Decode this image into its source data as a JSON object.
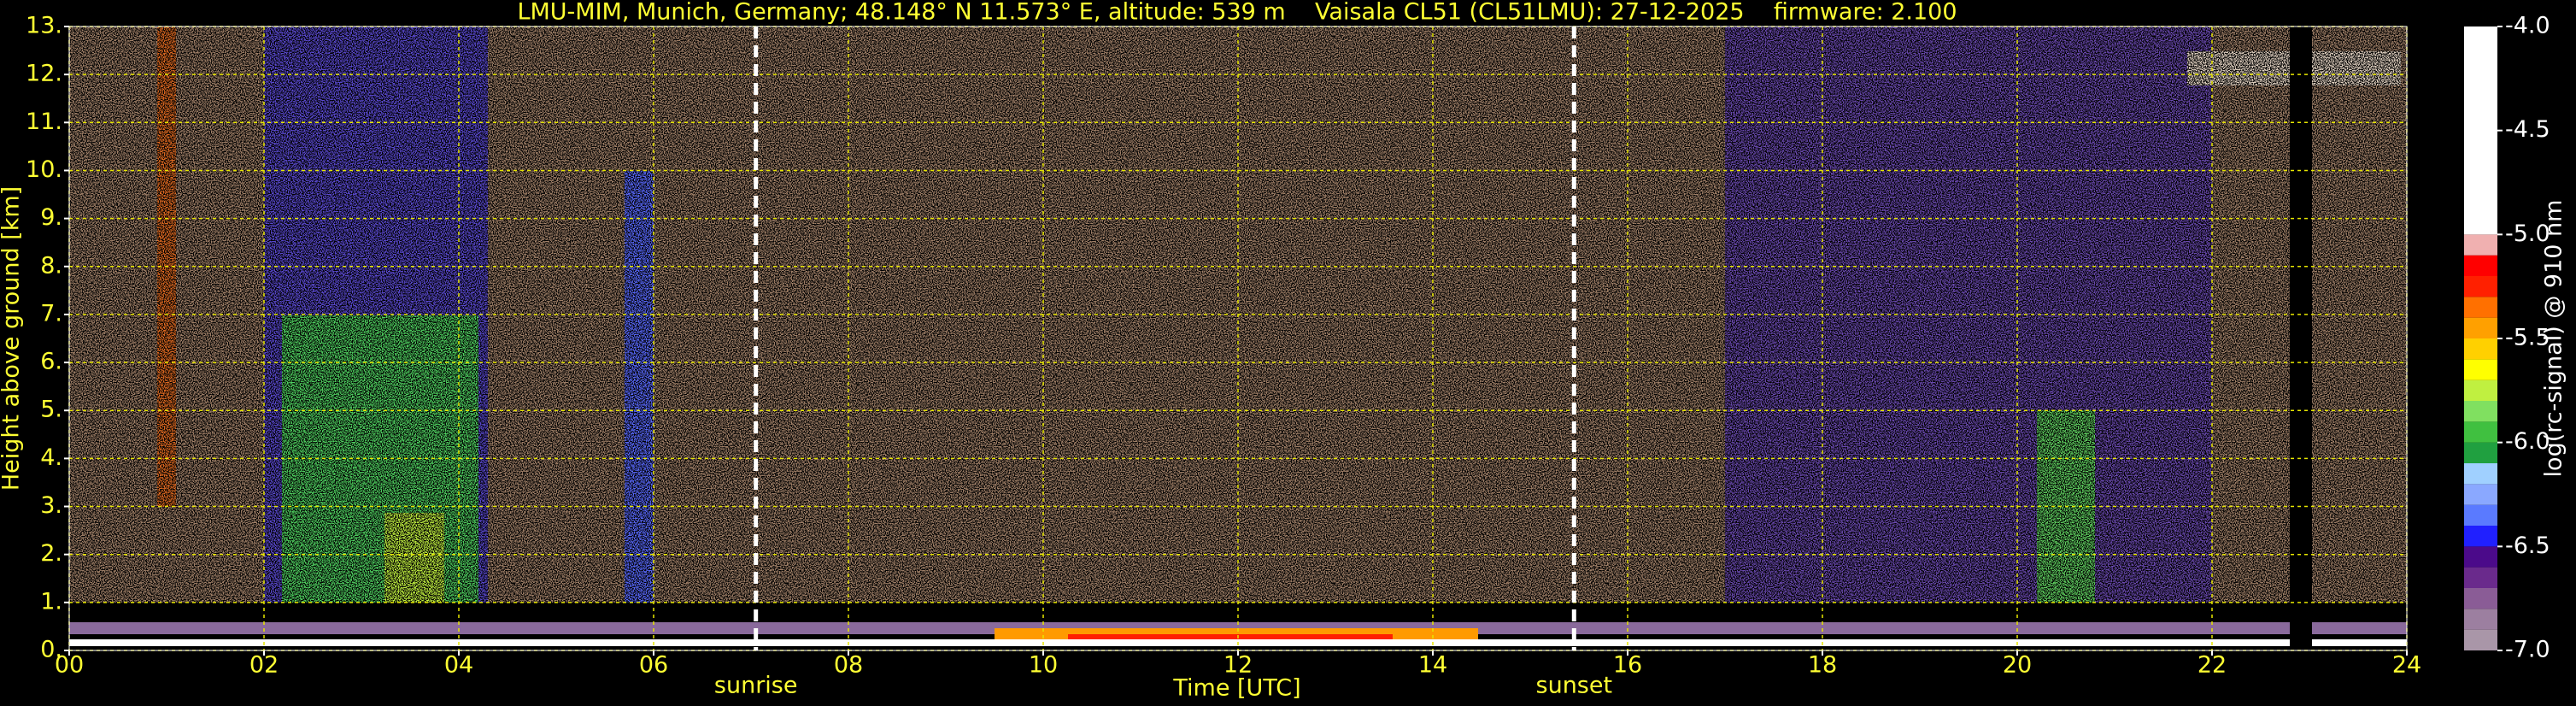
{
  "chart_data": {
    "type": "heatmap",
    "title": "LMU-MIM, Munich, Germany; 48.148° N 11.573° E, altitude: 539 m    Vaisala CL51 (CL51LMU): 27-12-2025    firmware: 2.100",
    "x_label": "Time [UTC]",
    "y_label": "Height above ground [km]",
    "colorbar_label": "log(rc-signal) @ 910 nm",
    "xlim": [
      0,
      24
    ],
    "xticks": [
      {
        "value": 0,
        "label": "00"
      },
      {
        "value": 2,
        "label": "02"
      },
      {
        "value": 4,
        "label": "04"
      },
      {
        "value": 6,
        "label": "06"
      },
      {
        "value": 8,
        "label": "08"
      },
      {
        "value": 10,
        "label": "10"
      },
      {
        "value": 12,
        "label": "12"
      },
      {
        "value": 14,
        "label": "14"
      },
      {
        "value": 16,
        "label": "16"
      },
      {
        "value": 18,
        "label": "18"
      },
      {
        "value": 20,
        "label": "20"
      },
      {
        "value": 22,
        "label": "22"
      },
      {
        "value": 24,
        "label": "24"
      }
    ],
    "ylim": [
      0,
      13
    ],
    "yticks": [
      {
        "value": 0,
        "label": "0."
      },
      {
        "value": 1,
        "label": "1."
      },
      {
        "value": 2,
        "label": "2."
      },
      {
        "value": 3,
        "label": "3."
      },
      {
        "value": 4,
        "label": "4."
      },
      {
        "value": 5,
        "label": "5."
      },
      {
        "value": 6,
        "label": "6."
      },
      {
        "value": 7,
        "label": "7."
      },
      {
        "value": 8,
        "label": "8."
      },
      {
        "value": 9,
        "label": "9."
      },
      {
        "value": 10,
        "label": "10."
      },
      {
        "value": 11,
        "label": "11."
      },
      {
        "value": 12,
        "label": "12."
      },
      {
        "value": 13,
        "label": "13."
      }
    ],
    "grid": true,
    "annotations": [
      {
        "text": "sunrise",
        "x": 7.05
      },
      {
        "text": "sunset",
        "x": 15.45
      }
    ],
    "colorbar": {
      "lim": [
        -7,
        -4
      ],
      "ticks": [
        {
          "value": -4,
          "label": "-4.0"
        },
        {
          "value": -4.5,
          "label": "-4.5"
        },
        {
          "value": -5,
          "label": "-5.0"
        },
        {
          "value": -5.5,
          "label": "-5.5"
        },
        {
          "value": -6,
          "label": "-6.0"
        },
        {
          "value": -6.5,
          "label": "-6.5"
        },
        {
          "value": -7,
          "label": "-7.0"
        }
      ],
      "bins": [
        -7,
        -6.9,
        -6.8,
        -6.7,
        -6.6,
        -6.5,
        -6.4,
        -6.3,
        -6.2,
        -6.1,
        -6,
        -5.9,
        -5.8,
        -5.7,
        -5.6,
        -5.5,
        -5.4,
        -5.3,
        -5.2,
        -5.1,
        -5,
        -4
      ],
      "colors": [
        "#a996a8",
        "#9c7fa0",
        "#8a5c96",
        "#6a2a8c",
        "#4b0a8a",
        "#2020ff",
        "#5a7aff",
        "#8aa8ff",
        "#a0d0ff",
        "#20a040",
        "#40c040",
        "#80e060",
        "#c0f040",
        "#ffff00",
        "#ffd000",
        "#ffa000",
        "#ff7000",
        "#ff2000",
        "#ff0000",
        "#f0b0b0",
        "#ffffff"
      ]
    }
  }
}
